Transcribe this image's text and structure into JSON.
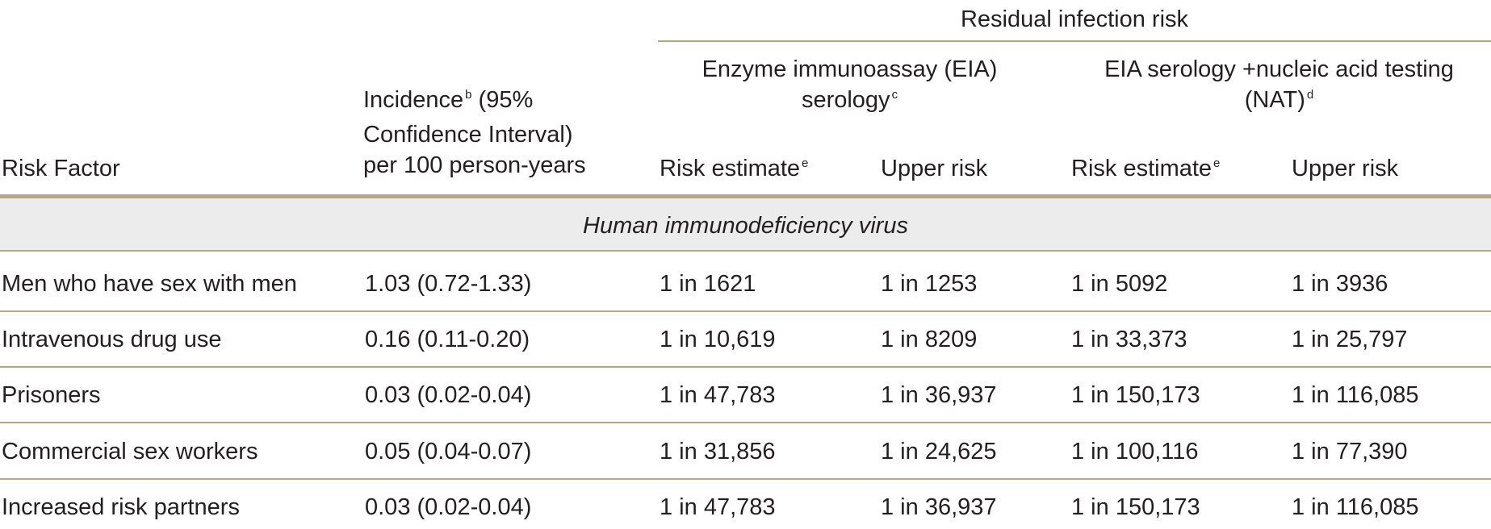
{
  "header": {
    "group_title": "Residual infection risk",
    "eia": {
      "label": "Enzyme immunoassay (EIA) serology",
      "label_line1": "Enzyme immunoassay (EIA)",
      "label_line2": "serology",
      "sup": "c"
    },
    "nat": {
      "label_line1": "EIA serology +nucleic acid testing",
      "label_line2": "(NAT)",
      "sup": "d"
    },
    "risk_factor": "Risk Factor",
    "incidence": {
      "line1": "Incidence",
      "sup": "b",
      "line1_tail": " (95%",
      "line2": "Confidence Interval)",
      "line3": "per 100 person-years"
    },
    "risk_estimate": "Risk estimate",
    "risk_estimate_sup": "e",
    "upper_risk": "Upper risk"
  },
  "section": {
    "title": "Human immunodeficiency virus"
  },
  "rows": [
    {
      "factor": "Men who have sex with men",
      "incidence": "1.03 (0.72-1.33)",
      "eia_est": "1 in 1621",
      "eia_upper": "1 in 1253",
      "nat_est": "1 in 5092",
      "nat_upper": "1 in 3936"
    },
    {
      "factor": "Intravenous drug use",
      "incidence": "0.16 (0.11-0.20)",
      "eia_est": "1 in 10,619",
      "eia_upper": "1 in 8209",
      "nat_est": "1 in 33,373",
      "nat_upper": "1 in 25,797"
    },
    {
      "factor": "Prisoners",
      "incidence": "0.03 (0.02-0.04)",
      "eia_est": "1 in 47,783",
      "eia_upper": "1 in 36,937",
      "nat_est": "1 in 150,173",
      "nat_upper": "1 in 116,085"
    },
    {
      "factor": "Commercial sex workers",
      "incidence": "0.05 (0.04-0.07)",
      "eia_est": "1 in 31,856",
      "eia_upper": "1 in 24,625",
      "nat_est": "1 in 100,116",
      "nat_upper": "1 in 77,390"
    },
    {
      "factor": "Increased risk partners",
      "incidence": "0.03 (0.02-0.04)",
      "eia_est": "1 in 47,783",
      "eia_upper": "1 in 36,937",
      "nat_est": "1 in 150,173",
      "nat_upper": "1 in 116,085"
    }
  ]
}
